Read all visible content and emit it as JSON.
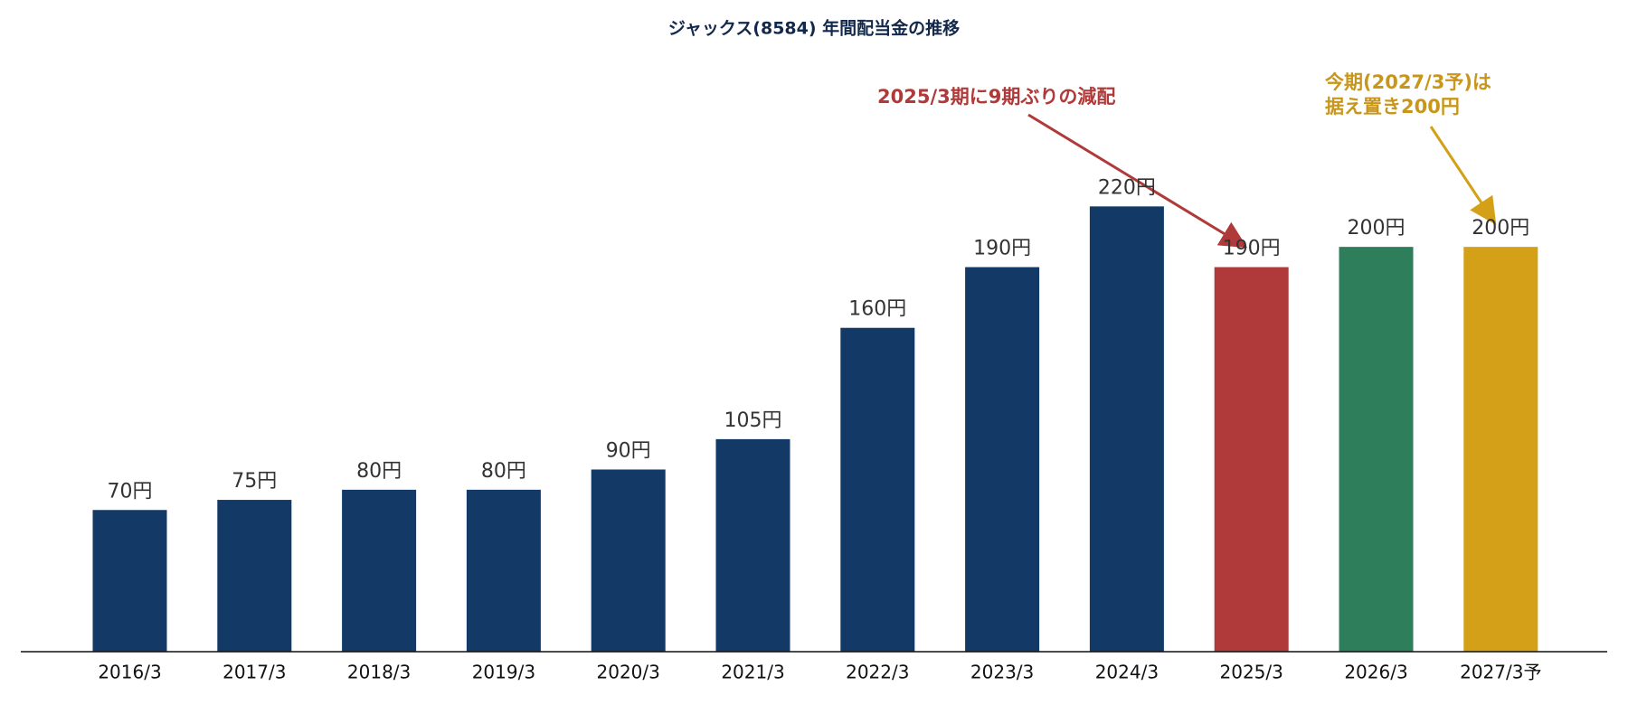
{
  "chart_data": {
    "type": "bar",
    "title": "ジャックス(8584) 年間配当金の推移",
    "categories": [
      "2016/3",
      "2017/3",
      "2018/3",
      "2019/3",
      "2020/3",
      "2021/3",
      "2022/3",
      "2023/3",
      "2024/3",
      "2025/3",
      "2026/3",
      "2027/3予"
    ],
    "values": [
      70,
      75,
      80,
      80,
      90,
      105,
      160,
      190,
      220,
      190,
      200,
      200
    ],
    "value_labels": [
      "70円",
      "75円",
      "80円",
      "80円",
      "90円",
      "105円",
      "160円",
      "190円",
      "220円",
      "190円",
      "200円",
      "200円"
    ],
    "colors": [
      "#133a66",
      "#133a66",
      "#133a66",
      "#133a66",
      "#133a66",
      "#133a66",
      "#133a66",
      "#133a66",
      "#133a66",
      "#b03a3a",
      "#2e7d5b",
      "#d4a017"
    ],
    "ylim": [
      0,
      280
    ],
    "annotations": [
      {
        "lines": [
          "2025/3期に9期ぶりの減配"
        ],
        "color": "#b03a3a"
      },
      {
        "lines": [
          "今期(2027/3予)は",
          "据え置き200円"
        ],
        "color": "#c8961a"
      }
    ]
  }
}
